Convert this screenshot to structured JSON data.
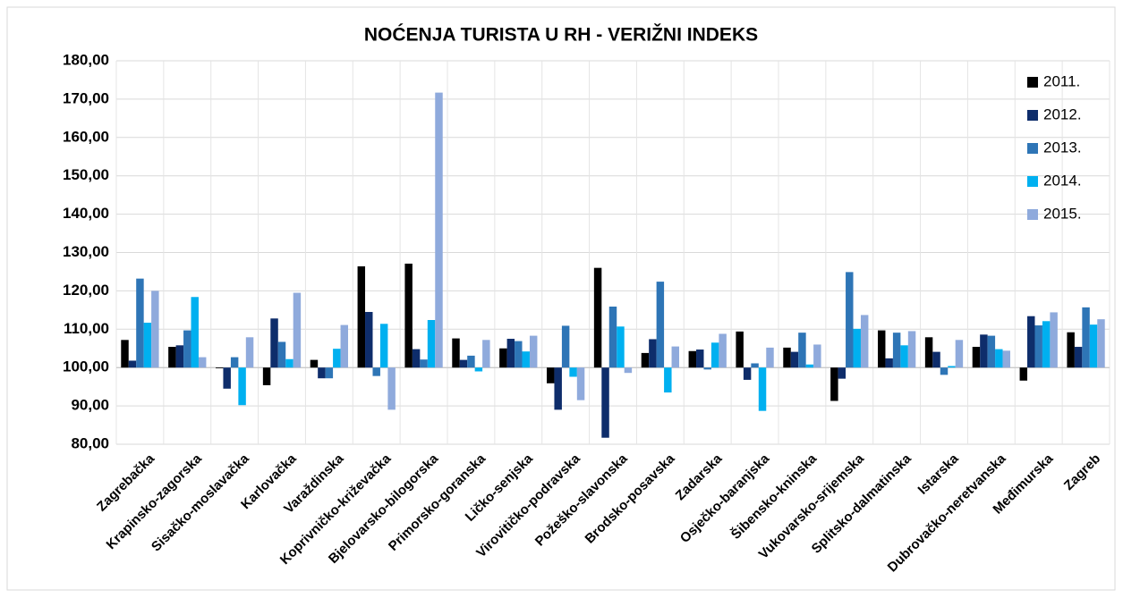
{
  "chart_data": {
    "type": "bar",
    "title": "NOĆENJA TURISTA U RH - VERIŽNI INDEKS",
    "categories": [
      "Zagrebačka",
      "Krapinsko-zagorska",
      "Sisačko-moslavačka",
      "Karlovačka",
      "Varaždinska",
      "Koprivničko-križevačka",
      "Bjelovarsko-bilogorska",
      "Primorsko-goranska",
      "Ličko-senjska",
      "Virovitičko-podravska",
      "Požeško-slavonska",
      "Brodsko-posavska",
      "Zadarska",
      "Osječko-baranjska",
      "Šibensko-kninska",
      "Vukovarsko-srijemska",
      "Splitsko-dalmatinska",
      "Istarska",
      "Dubrovačko-neretvanska",
      "Međimurska",
      "Zagreb"
    ],
    "series": [
      {
        "name": "2011.",
        "color": "#000000",
        "values": [
          107.2,
          105.4,
          99.8,
          95.4,
          102.0,
          126.4,
          127.1,
          107.6,
          105.0,
          95.9,
          126.0,
          103.8,
          104.3,
          109.4,
          105.2,
          91.3,
          109.7,
          107.9,
          105.4,
          96.6,
          109.2
        ]
      },
      {
        "name": "2012.",
        "color": "#0e2d6b",
        "values": [
          101.8,
          105.8,
          94.5,
          112.8,
          97.2,
          114.5,
          104.8,
          102.0,
          107.5,
          89.0,
          81.7,
          107.4,
          104.7,
          96.8,
          104.1,
          97.1,
          102.4,
          104.1,
          108.6,
          113.4,
          105.4
        ]
      },
      {
        "name": "2013.",
        "color": "#2e75b6",
        "values": [
          123.2,
          109.7,
          102.7,
          106.7,
          97.2,
          97.8,
          102.1,
          103.1,
          106.9,
          110.9,
          115.9,
          122.4,
          99.5,
          101.1,
          109.1,
          124.9,
          109.1,
          98.1,
          108.3,
          111.0,
          115.7
        ]
      },
      {
        "name": "2014.",
        "color": "#00b0f0",
        "values": [
          111.7,
          118.4,
          90.2,
          102.2,
          104.9,
          111.4,
          112.4,
          99.0,
          104.2,
          97.6,
          110.7,
          93.5,
          106.5,
          88.7,
          100.8,
          110.1,
          105.8,
          100.4,
          104.8,
          112.1,
          111.2
        ]
      },
      {
        "name": "2015.",
        "color": "#8faadc",
        "values": [
          120.0,
          102.7,
          107.9,
          119.5,
          111.1,
          89.0,
          171.7,
          107.2,
          108.3,
          91.5,
          98.6,
          105.5,
          108.8,
          105.2,
          106.0,
          113.7,
          109.5,
          107.2,
          104.4,
          114.4,
          112.6
        ]
      }
    ],
    "ylim": [
      80,
      180
    ],
    "yticks": [
      {
        "value": 80,
        "label": "80,00"
      },
      {
        "value": 90,
        "label": "90,00"
      },
      {
        "value": 100,
        "label": "100,00"
      },
      {
        "value": 110,
        "label": "110,00"
      },
      {
        "value": 120,
        "label": "120,00"
      },
      {
        "value": 130,
        "label": "130,00"
      },
      {
        "value": 140,
        "label": "140,00"
      },
      {
        "value": 150,
        "label": "150,00"
      },
      {
        "value": 160,
        "label": "160,00"
      },
      {
        "value": 170,
        "label": "170,00"
      },
      {
        "value": 180,
        "label": "180,00"
      }
    ],
    "x_axis_crosses": 100,
    "grid": true,
    "legend": "top-right"
  }
}
